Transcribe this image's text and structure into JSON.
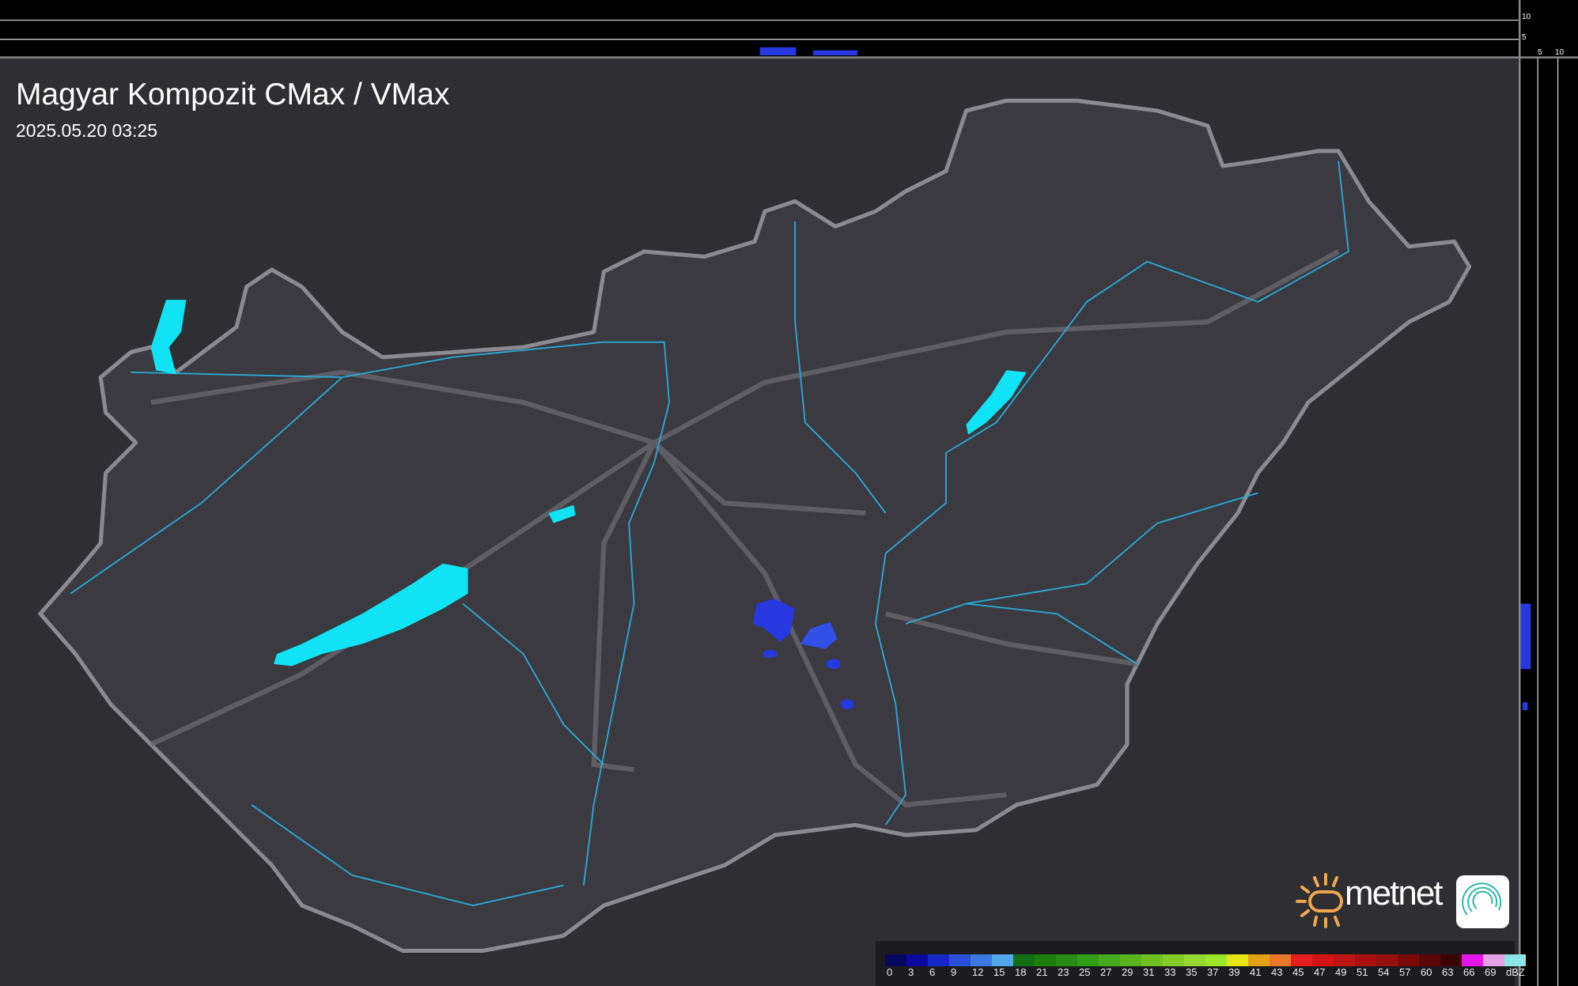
{
  "header": {
    "title": "Magyar Kompozit CMax / VMax",
    "timestamp": "2025.05.20 03:25"
  },
  "side_axes": {
    "top_ticks": [
      "10",
      "5"
    ],
    "right_ticks": [
      "5",
      "10"
    ]
  },
  "logo": {
    "text": "metnet",
    "sun_color": "#f0a850"
  },
  "legend": {
    "unit": "dBZ",
    "labels": [
      "0",
      "3",
      "6",
      "9",
      "12",
      "15",
      "18",
      "21",
      "23",
      "25",
      "27",
      "29",
      "31",
      "33",
      "35",
      "37",
      "39",
      "41",
      "43",
      "45",
      "47",
      "49",
      "51",
      "54",
      "57",
      "60",
      "63",
      "66",
      "69"
    ],
    "colors": [
      "#060660",
      "#0a0aa0",
      "#1428c8",
      "#2850d8",
      "#3c78e0",
      "#50a8e8",
      "#146e14",
      "#1e7e0a",
      "#288c14",
      "#329c14",
      "#46aa1e",
      "#5ab41e",
      "#6ec023",
      "#82cc28",
      "#96d830",
      "#a0e628",
      "#e6e614",
      "#e6a014",
      "#e67828",
      "#e61e1e",
      "#d21414",
      "#be1414",
      "#aa1010",
      "#961010",
      "#7a0a0a",
      "#5a0606",
      "#3a0404",
      "#e614e6",
      "#e6a0e6",
      "#8ce6e6"
    ]
  },
  "map": {
    "background": "#333338",
    "country_fill": "#3a3a40",
    "border_color": "#8a8a90",
    "lake_color": "#10e4f4",
    "river_color": "#2aa8d0"
  }
}
